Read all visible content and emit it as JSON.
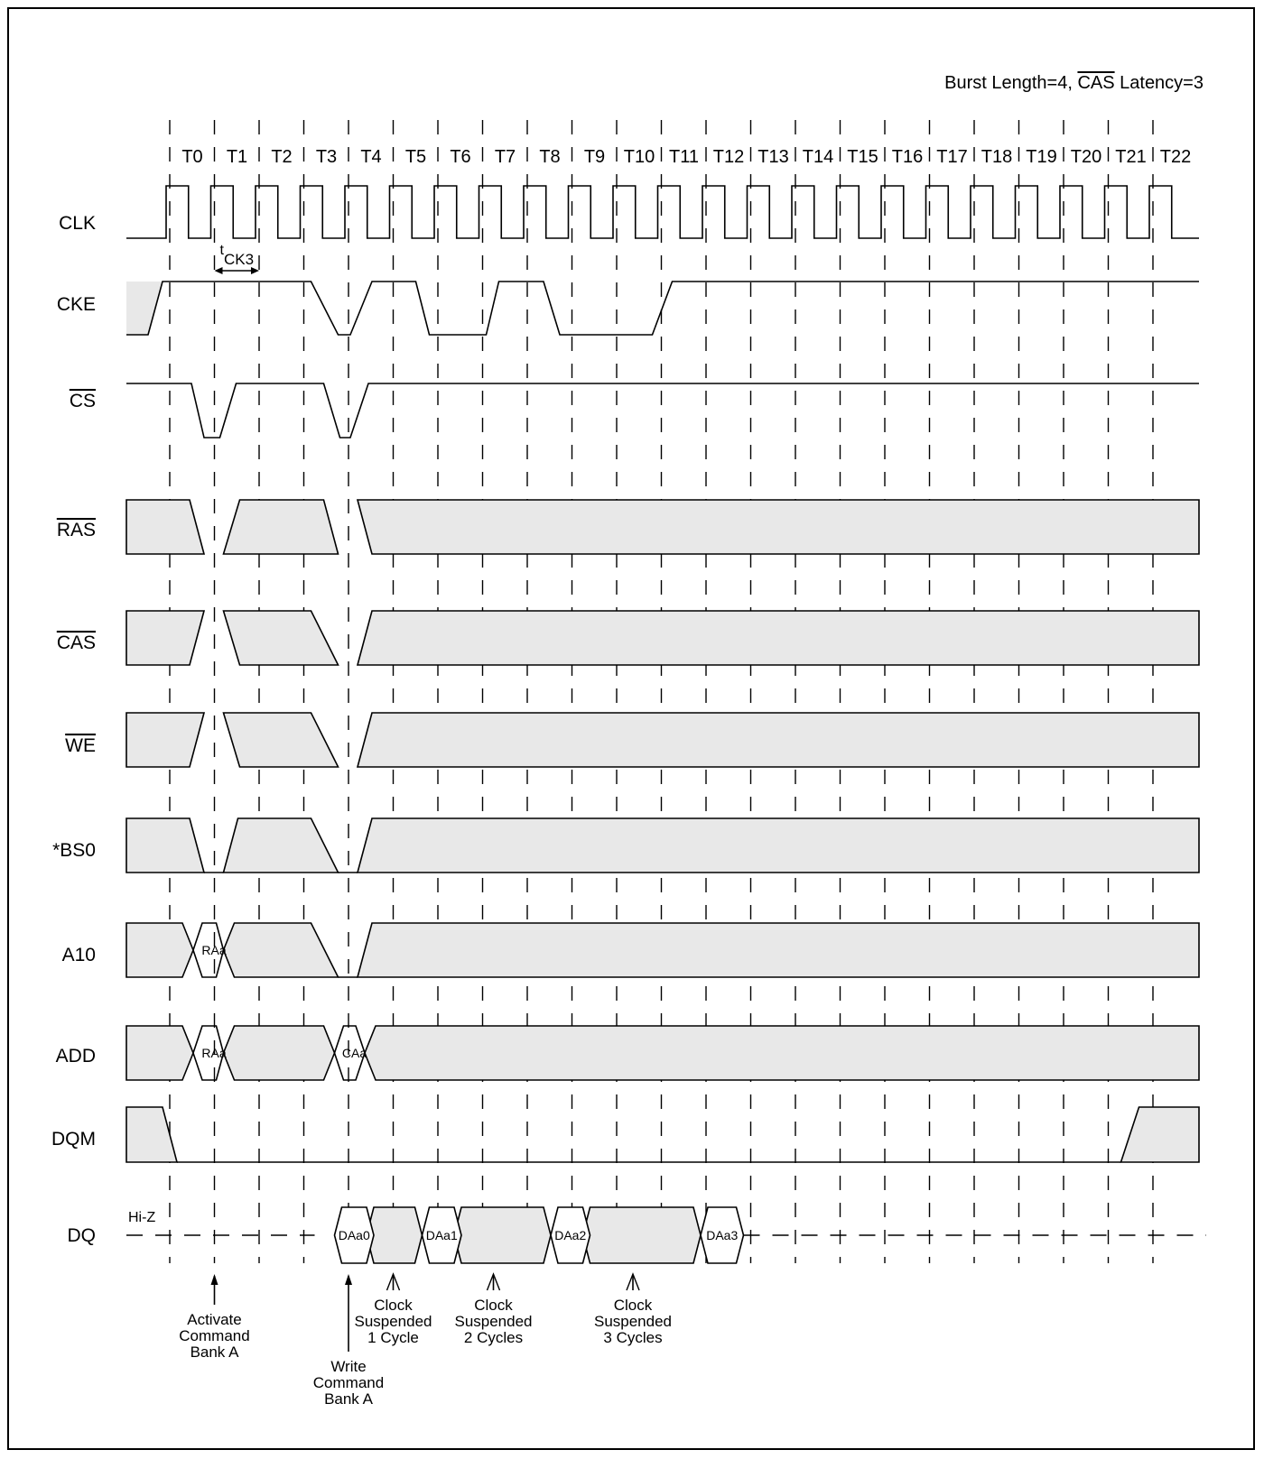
{
  "header": {
    "prefix": "Burst  Length=4, ",
    "overline": "CAS",
    "suffix": " Latency=3"
  },
  "cycles": [
    "T0",
    "T1",
    "T2",
    "T3",
    "T4",
    "T5",
    "T6",
    "T7",
    "T8",
    "T9",
    "T10",
    "T11",
    "T12",
    "T13",
    "T14",
    "T15",
    "T16",
    "T17",
    "T18",
    "T19",
    "T20",
    "T21",
    "T22"
  ],
  "signals": [
    {
      "id": "clk",
      "label": "CLK",
      "overline": false
    },
    {
      "id": "cke",
      "label": "CKE",
      "overline": false
    },
    {
      "id": "cs",
      "label": "CS",
      "overline": true
    },
    {
      "id": "ras",
      "label": "RAS",
      "overline": true
    },
    {
      "id": "cas",
      "label": "CAS",
      "overline": true
    },
    {
      "id": "we",
      "label": "WE",
      "overline": true
    },
    {
      "id": "bs0",
      "label": "*BS0",
      "overline": false
    },
    {
      "id": "a10",
      "label": "A10",
      "overline": false
    },
    {
      "id": "add",
      "label": "ADD",
      "overline": false
    },
    {
      "id": "dqm",
      "label": "DQM",
      "overline": false
    },
    {
      "id": "dq",
      "label": "DQ",
      "overline": false
    }
  ],
  "timing_label": {
    "t": "t",
    "sub": "CK3"
  },
  "hiz_label": "Hi-Z",
  "cells": {
    "a10": "RAa",
    "add_row": "RAa",
    "add_col": "CAa",
    "dq": [
      "DAa0",
      "DAa1",
      "DAa2",
      "DAa3"
    ]
  },
  "annotations": [
    {
      "lines": [
        "Activate",
        "Command",
        "Bank A"
      ]
    },
    {
      "lines": [
        "Write",
        "Command",
        "Bank A"
      ]
    },
    {
      "lines": [
        "Clock",
        "Suspended",
        "1 Cycle"
      ]
    },
    {
      "lines": [
        "Clock",
        "Suspended",
        "2 Cycles"
      ]
    },
    {
      "lines": [
        "Clock",
        "Suspended",
        "3 Cycles"
      ]
    }
  ],
  "colors": {
    "fill": "#e8e8e8",
    "line": "#000000"
  }
}
